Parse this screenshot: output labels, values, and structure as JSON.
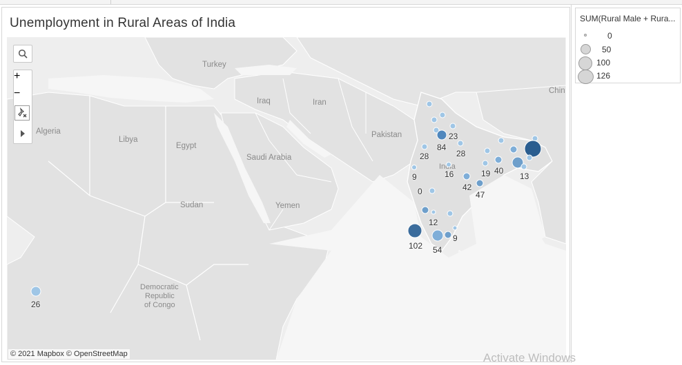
{
  "title": "Unemployment in Rural Areas of India",
  "attribution": "© 2021 Mapbox © OpenStreetMap",
  "watermark": "Activate Windows",
  "legend": {
    "title": "SUM(Rural Male + Rura...",
    "items": [
      {
        "label": "0",
        "value": 0
      },
      {
        "label": "50",
        "value": 50
      },
      {
        "label": "100",
        "value": 100
      },
      {
        "label": "126",
        "value": 126
      }
    ]
  },
  "toolbar": {
    "search_icon": "search-icon",
    "zoom_in": "+",
    "zoom_out": "−",
    "pin_icon": "pin-icon",
    "expand_icon": "play-icon"
  },
  "place_labels": {
    "turkey": "Turkey",
    "iraq": "Iraq",
    "iran": "Iran",
    "algeria": "Algeria",
    "libya": "Libya",
    "egypt": "Egypt",
    "saudi_arabia": "Saudi Arabia",
    "pakistan": "Pakistan",
    "sudan": "Sudan",
    "yemen": "Yemen",
    "drc_1": "Democratic",
    "drc_2": "Republic",
    "drc_3": "of Congo",
    "china": "Chin",
    "india": "India"
  },
  "value_labels": {
    "v23": "23",
    "v84": "84",
    "v28a": "28",
    "v28b": "28",
    "v9a": "9",
    "v16": "16",
    "v19": "19",
    "v40": "40",
    "v13": "13",
    "v0": "0",
    "v42": "42",
    "v47": "47",
    "v12": "12",
    "v102": "102",
    "v54": "54",
    "v9b": "9",
    "v26": "26"
  },
  "colors": {
    "map_bg": "#eeeeee",
    "land": "#e3e3e3",
    "border": "#ffffff",
    "marker_light": "#9fc6e6",
    "marker_mid": "#6e9fcb",
    "marker_dark": "#2a5d8f"
  }
}
